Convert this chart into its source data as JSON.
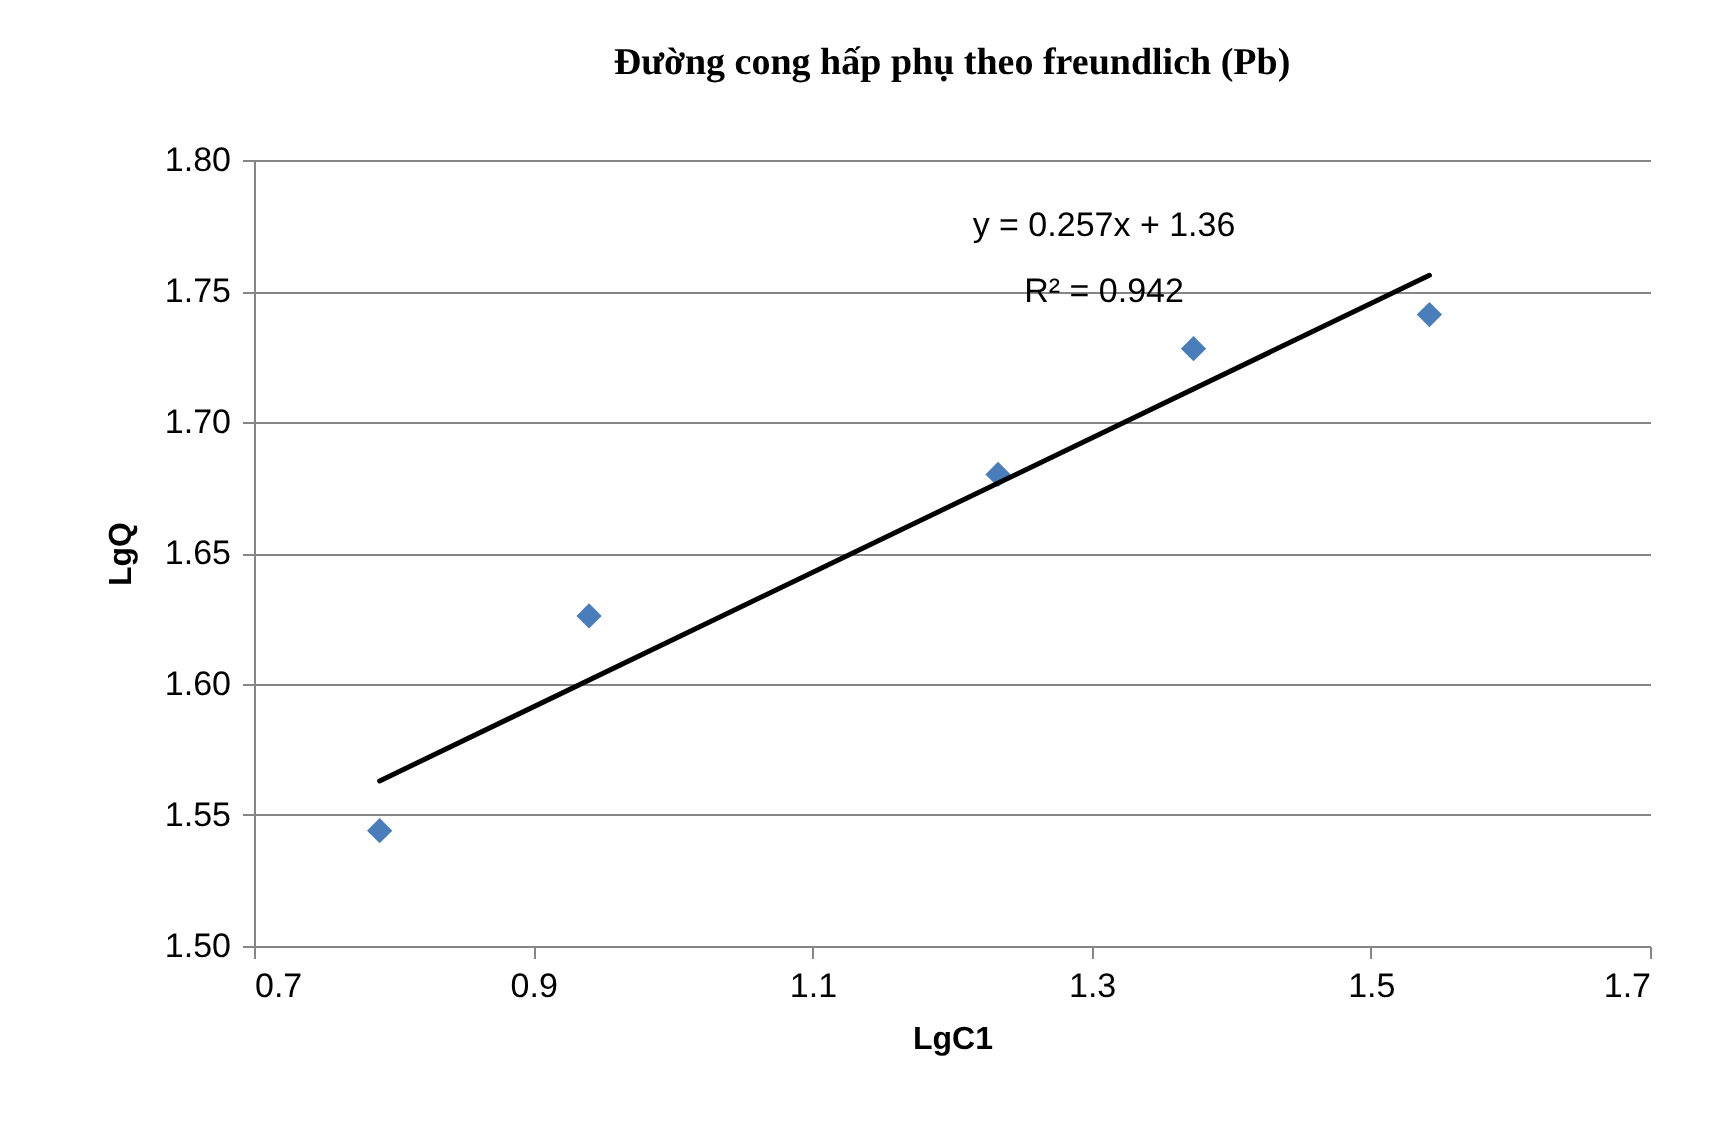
{
  "chart_data": {
    "type": "scatter",
    "title": "Đường cong hấp phụ theo freundlich (Pb)",
    "xlabel": "LgC1",
    "ylabel": "LgQ",
    "x": [
      0.79,
      0.94,
      1.233,
      1.373,
      1.542
    ],
    "series": [
      {
        "type": "scatter",
        "color": "#4a7ebb",
        "marker": "diamond",
        "values": [
          1.544,
          1.626,
          1.68,
          1.728,
          1.741
        ]
      },
      {
        "type": "line",
        "color": "#000000",
        "marker": "none",
        "x": [
          0.79,
          1.542
        ],
        "values": [
          1.563,
          1.756
        ]
      }
    ],
    "xlim": [
      0.7,
      1.7
    ],
    "xticks": [
      0.7,
      0.9,
      1.1,
      1.3,
      1.5,
      1.7
    ],
    "ylim": [
      1.5,
      1.8
    ],
    "yticks": [
      {
        "value": 1.5,
        "label": "1.50"
      },
      1.55,
      {
        "value": 1.6,
        "label": "1.60"
      },
      1.65,
      {
        "value": 1.7,
        "label": "1.70"
      },
      1.75,
      {
        "value": 1.8,
        "label": "1.80"
      }
    ],
    "grid": "y",
    "annotations": [
      "y = 0.257x + 1.36",
      "R² = 0.942"
    ]
  }
}
